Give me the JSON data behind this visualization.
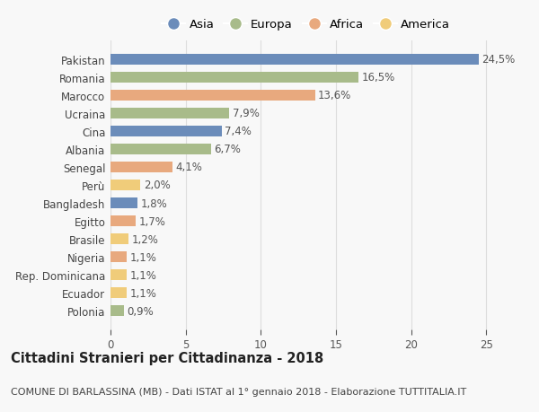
{
  "countries": [
    "Pakistan",
    "Romania",
    "Marocco",
    "Ucraina",
    "Cina",
    "Albania",
    "Senegal",
    "Perù",
    "Bangladesh",
    "Egitto",
    "Brasile",
    "Nigeria",
    "Rep. Dominicana",
    "Ecuador",
    "Polonia"
  ],
  "values": [
    24.5,
    16.5,
    13.6,
    7.9,
    7.4,
    6.7,
    4.1,
    2.0,
    1.8,
    1.7,
    1.2,
    1.1,
    1.1,
    1.1,
    0.9
  ],
  "labels": [
    "24,5%",
    "16,5%",
    "13,6%",
    "7,9%",
    "7,4%",
    "6,7%",
    "4,1%",
    "2,0%",
    "1,8%",
    "1,7%",
    "1,2%",
    "1,1%",
    "1,1%",
    "1,1%",
    "0,9%"
  ],
  "continents": [
    "Asia",
    "Europa",
    "Africa",
    "Europa",
    "Asia",
    "Europa",
    "Africa",
    "America",
    "Asia",
    "Africa",
    "America",
    "Africa",
    "America",
    "America",
    "Europa"
  ],
  "continent_colors": {
    "Asia": "#6b8cba",
    "Europa": "#a8bb8a",
    "Africa": "#e8a97e",
    "America": "#f0cc7a"
  },
  "legend_order": [
    "Asia",
    "Europa",
    "Africa",
    "America"
  ],
  "title_bold": "Cittadini Stranieri per Cittadinanza - 2018",
  "subtitle": "COMUNE DI BARLASSINA (MB) - Dati ISTAT al 1° gennaio 2018 - Elaborazione TUTTITALIA.IT",
  "xlim": [
    0,
    26
  ],
  "xticks": [
    0,
    5,
    10,
    15,
    20,
    25
  ],
  "bg_color": "#f8f8f8",
  "grid_color": "#dddddd",
  "bar_height": 0.6,
  "label_fontsize": 8.5,
  "tick_fontsize": 8.5,
  "title_fontsize": 10.5,
  "subtitle_fontsize": 8
}
